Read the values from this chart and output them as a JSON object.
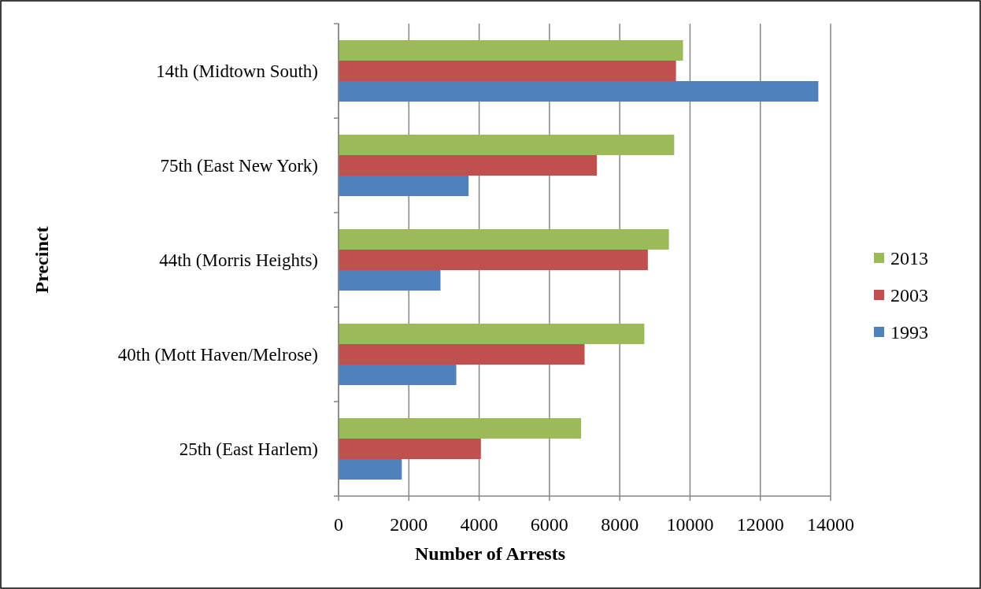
{
  "chart_data": {
    "type": "bar",
    "orientation": "horizontal",
    "xlabel": "Number of Arrests",
    "ylabel": "Precinct",
    "categories": [
      "14th (Midtown South)",
      "75th (East New York)",
      "44th (Morris Heights)",
      "40th (Mott Haven/Melrose)",
      "25th (East Harlem)"
    ],
    "series": [
      {
        "name": "2013",
        "color": "#9bbb59",
        "values": [
          9800,
          9550,
          9400,
          8700,
          6900
        ]
      },
      {
        "name": "2003",
        "color": "#c0504d",
        "values": [
          9600,
          7350,
          8800,
          7000,
          4050
        ]
      },
      {
        "name": "1993",
        "color": "#4f81bd",
        "values": [
          13650,
          3700,
          2900,
          3350,
          1800
        ]
      }
    ],
    "xlim": [
      0,
      14000
    ],
    "xticks": [
      0,
      2000,
      4000,
      6000,
      8000,
      10000,
      12000,
      14000
    ],
    "grid": "x",
    "legend": "right"
  }
}
